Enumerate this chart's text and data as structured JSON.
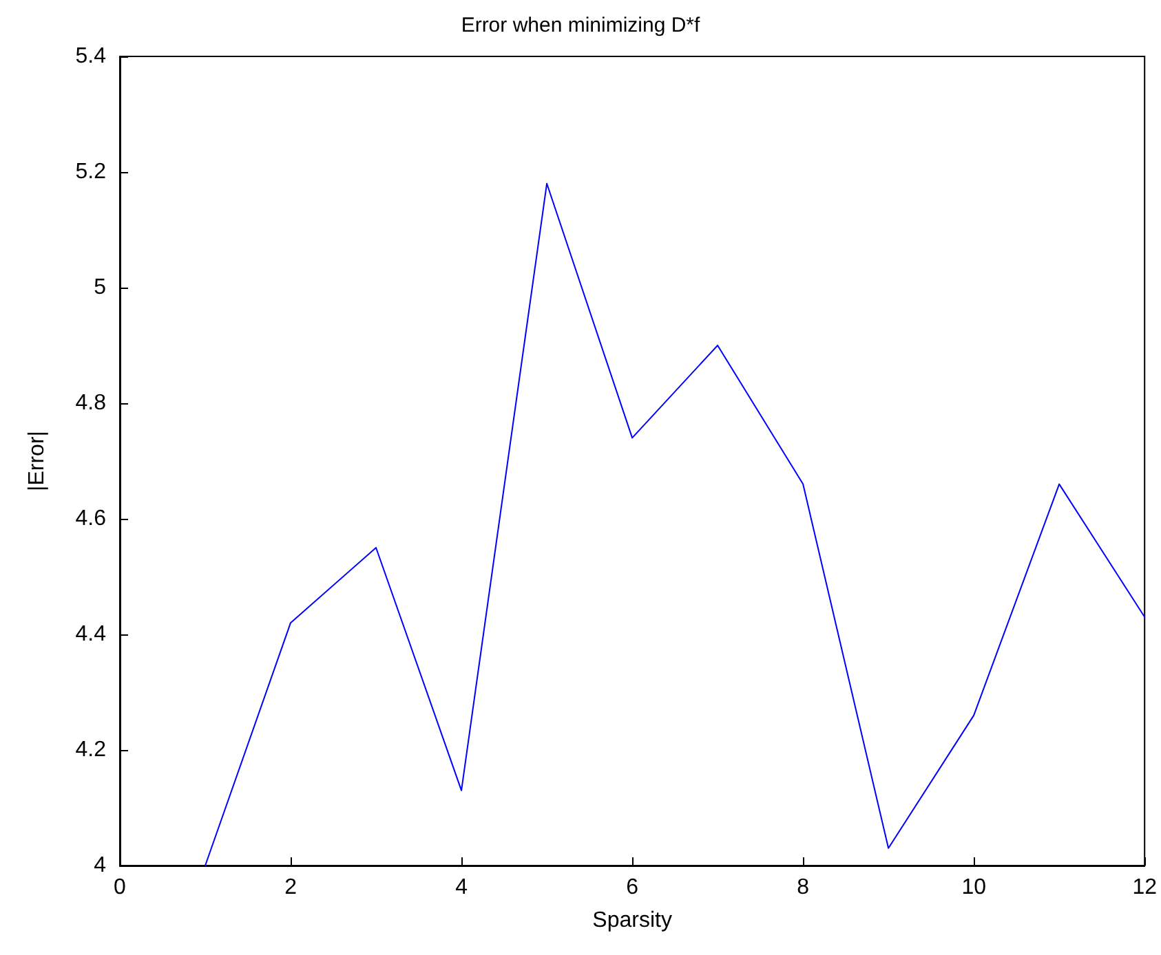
{
  "chart_data": {
    "type": "line",
    "title": "Error when minimizing D*f",
    "xlabel": "Sparsity",
    "ylabel": "|Error|",
    "x": [
      1,
      2,
      3,
      4,
      5,
      6,
      7,
      8,
      9,
      10,
      11,
      12
    ],
    "series": [
      {
        "color": "#0000ff",
        "values": [
          4.0,
          4.42,
          4.55,
          4.13,
          5.18,
          4.74,
          4.9,
          4.66,
          4.03,
          4.26,
          4.66,
          4.43
        ]
      }
    ],
    "xlim": [
      0,
      12
    ],
    "xticks": [
      0,
      2,
      4,
      6,
      8,
      10,
      12
    ],
    "ylim": [
      4,
      5.4
    ],
    "yticks": [
      4,
      4.2,
      4.4,
      4.6,
      4.8,
      5,
      5.2,
      5.4
    ],
    "marker": "none",
    "line_style": "solid"
  }
}
